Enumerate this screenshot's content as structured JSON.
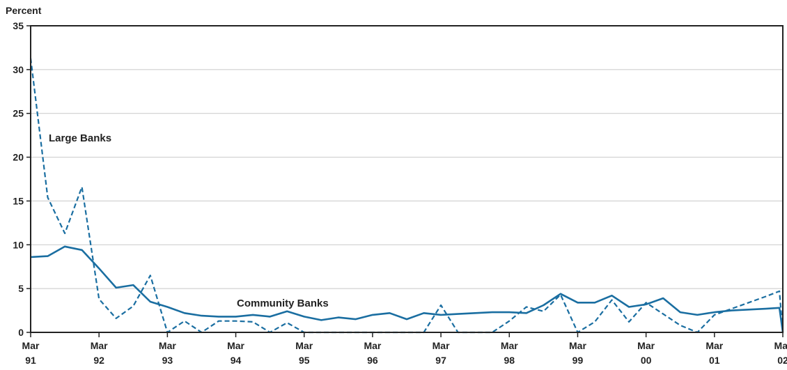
{
  "chart_data": {
    "type": "line",
    "ylabel": "Percent",
    "ylim": [
      0,
      35
    ],
    "yticks": [
      0,
      5,
      10,
      15,
      20,
      25,
      30,
      35
    ],
    "xlim": [
      1991.0,
      2002.0
    ],
    "xticks": [
      {
        "x": 1991,
        "line1": "Mar",
        "line2": "91"
      },
      {
        "x": 1992,
        "line1": "Mar",
        "line2": "92"
      },
      {
        "x": 1993,
        "line1": "Mar",
        "line2": "93"
      },
      {
        "x": 1994,
        "line1": "Mar",
        "line2": "94"
      },
      {
        "x": 1995,
        "line1": "Mar",
        "line2": "95"
      },
      {
        "x": 1996,
        "line1": "Mar",
        "line2": "96"
      },
      {
        "x": 1997,
        "line1": "Mar",
        "line2": "97"
      },
      {
        "x": 1998,
        "line1": "Mar",
        "line2": "98"
      },
      {
        "x": 1999,
        "line1": "Mar",
        "line2": "99"
      },
      {
        "x": 2000,
        "line1": "Mar",
        "line2": "00"
      },
      {
        "x": 2001,
        "line1": "Mar",
        "line2": "01"
      },
      {
        "x": 2002,
        "line1": "Mar",
        "line2": "02"
      }
    ],
    "grid": true,
    "series": [
      {
        "name": "Community Banks",
        "style": "solid",
        "color": "#1a6ea1",
        "points": [
          [
            1991.0,
            8.6
          ],
          [
            1991.25,
            8.7
          ],
          [
            1991.5,
            9.8
          ],
          [
            1991.75,
            9.4
          ],
          [
            1992.0,
            7.3
          ],
          [
            1992.25,
            5.1
          ],
          [
            1992.5,
            5.4
          ],
          [
            1992.75,
            3.5
          ],
          [
            1993.0,
            2.9
          ],
          [
            1993.25,
            2.2
          ],
          [
            1993.5,
            1.9
          ],
          [
            1993.75,
            1.8
          ],
          [
            1994.0,
            1.8
          ],
          [
            1994.25,
            2.0
          ],
          [
            1994.5,
            1.8
          ],
          [
            1994.75,
            2.4
          ],
          [
            1995.0,
            1.8
          ],
          [
            1995.25,
            1.4
          ],
          [
            1995.5,
            1.7
          ],
          [
            1995.75,
            1.5
          ],
          [
            1996.0,
            2.0
          ],
          [
            1996.25,
            2.2
          ],
          [
            1996.5,
            1.5
          ],
          [
            1996.75,
            2.2
          ],
          [
            1997.0,
            2.0
          ],
          [
            1997.25,
            2.1
          ],
          [
            1997.5,
            2.2
          ],
          [
            1997.75,
            2.3
          ],
          [
            1998.0,
            2.3
          ],
          [
            1998.25,
            2.2
          ],
          [
            1998.5,
            3.1
          ],
          [
            1998.75,
            4.4
          ],
          [
            1999.0,
            3.4
          ],
          [
            1999.25,
            3.4
          ],
          [
            1999.5,
            4.2
          ],
          [
            1999.75,
            2.9
          ],
          [
            2000.0,
            3.2
          ],
          [
            2000.25,
            3.9
          ],
          [
            2000.5,
            2.3
          ],
          [
            2000.75,
            2.0
          ],
          [
            2001.0,
            2.3
          ],
          [
            2001.25,
            2.5
          ],
          [
            2001.5,
            2.6
          ],
          [
            2001.75,
            2.7
          ],
          [
            2001.95,
            2.8
          ],
          [
            2002.0,
            0.0
          ]
        ]
      },
      {
        "name": "Large Banks",
        "style": "dashed",
        "color": "#1a6ea1",
        "points": [
          [
            1991.0,
            31.3
          ],
          [
            1991.25,
            15.4
          ],
          [
            1991.5,
            11.3
          ],
          [
            1991.75,
            16.6
          ],
          [
            1992.0,
            3.8
          ],
          [
            1992.25,
            1.6
          ],
          [
            1992.5,
            3.0
          ],
          [
            1992.75,
            6.5
          ],
          [
            1993.0,
            0.0
          ],
          [
            1993.25,
            1.3
          ],
          [
            1993.5,
            0.0
          ],
          [
            1993.75,
            1.3
          ],
          [
            1994.0,
            1.3
          ],
          [
            1994.25,
            1.2
          ],
          [
            1994.5,
            0.0
          ],
          [
            1994.75,
            1.1
          ],
          [
            1995.0,
            0.0
          ],
          [
            1995.25,
            0.0
          ],
          [
            1995.5,
            0.0
          ],
          [
            1995.75,
            0.0
          ],
          [
            1996.0,
            0.0
          ],
          [
            1996.25,
            0.0
          ],
          [
            1996.5,
            0.0
          ],
          [
            1996.75,
            0.0
          ],
          [
            1997.0,
            3.1
          ],
          [
            1997.25,
            0.0
          ],
          [
            1997.5,
            0.0
          ],
          [
            1997.75,
            0.0
          ],
          [
            1998.0,
            1.3
          ],
          [
            1998.25,
            2.9
          ],
          [
            1998.5,
            2.4
          ],
          [
            1998.75,
            4.3
          ],
          [
            1999.0,
            0.0
          ],
          [
            1999.25,
            1.2
          ],
          [
            1999.5,
            3.7
          ],
          [
            1999.75,
            1.2
          ],
          [
            2000.0,
            3.4
          ],
          [
            2000.25,
            2.1
          ],
          [
            2000.5,
            0.8
          ],
          [
            2000.75,
            0.0
          ],
          [
            2001.0,
            2.0
          ],
          [
            2001.25,
            2.7
          ],
          [
            2001.5,
            3.4
          ],
          [
            2001.75,
            4.1
          ],
          [
            2001.95,
            4.7
          ],
          [
            2002.0,
            0.0
          ]
        ]
      }
    ],
    "annotations": [
      {
        "text": "Large Banks",
        "series": "Large Banks"
      },
      {
        "text": "Community Banks",
        "series": "Community Banks"
      }
    ]
  }
}
